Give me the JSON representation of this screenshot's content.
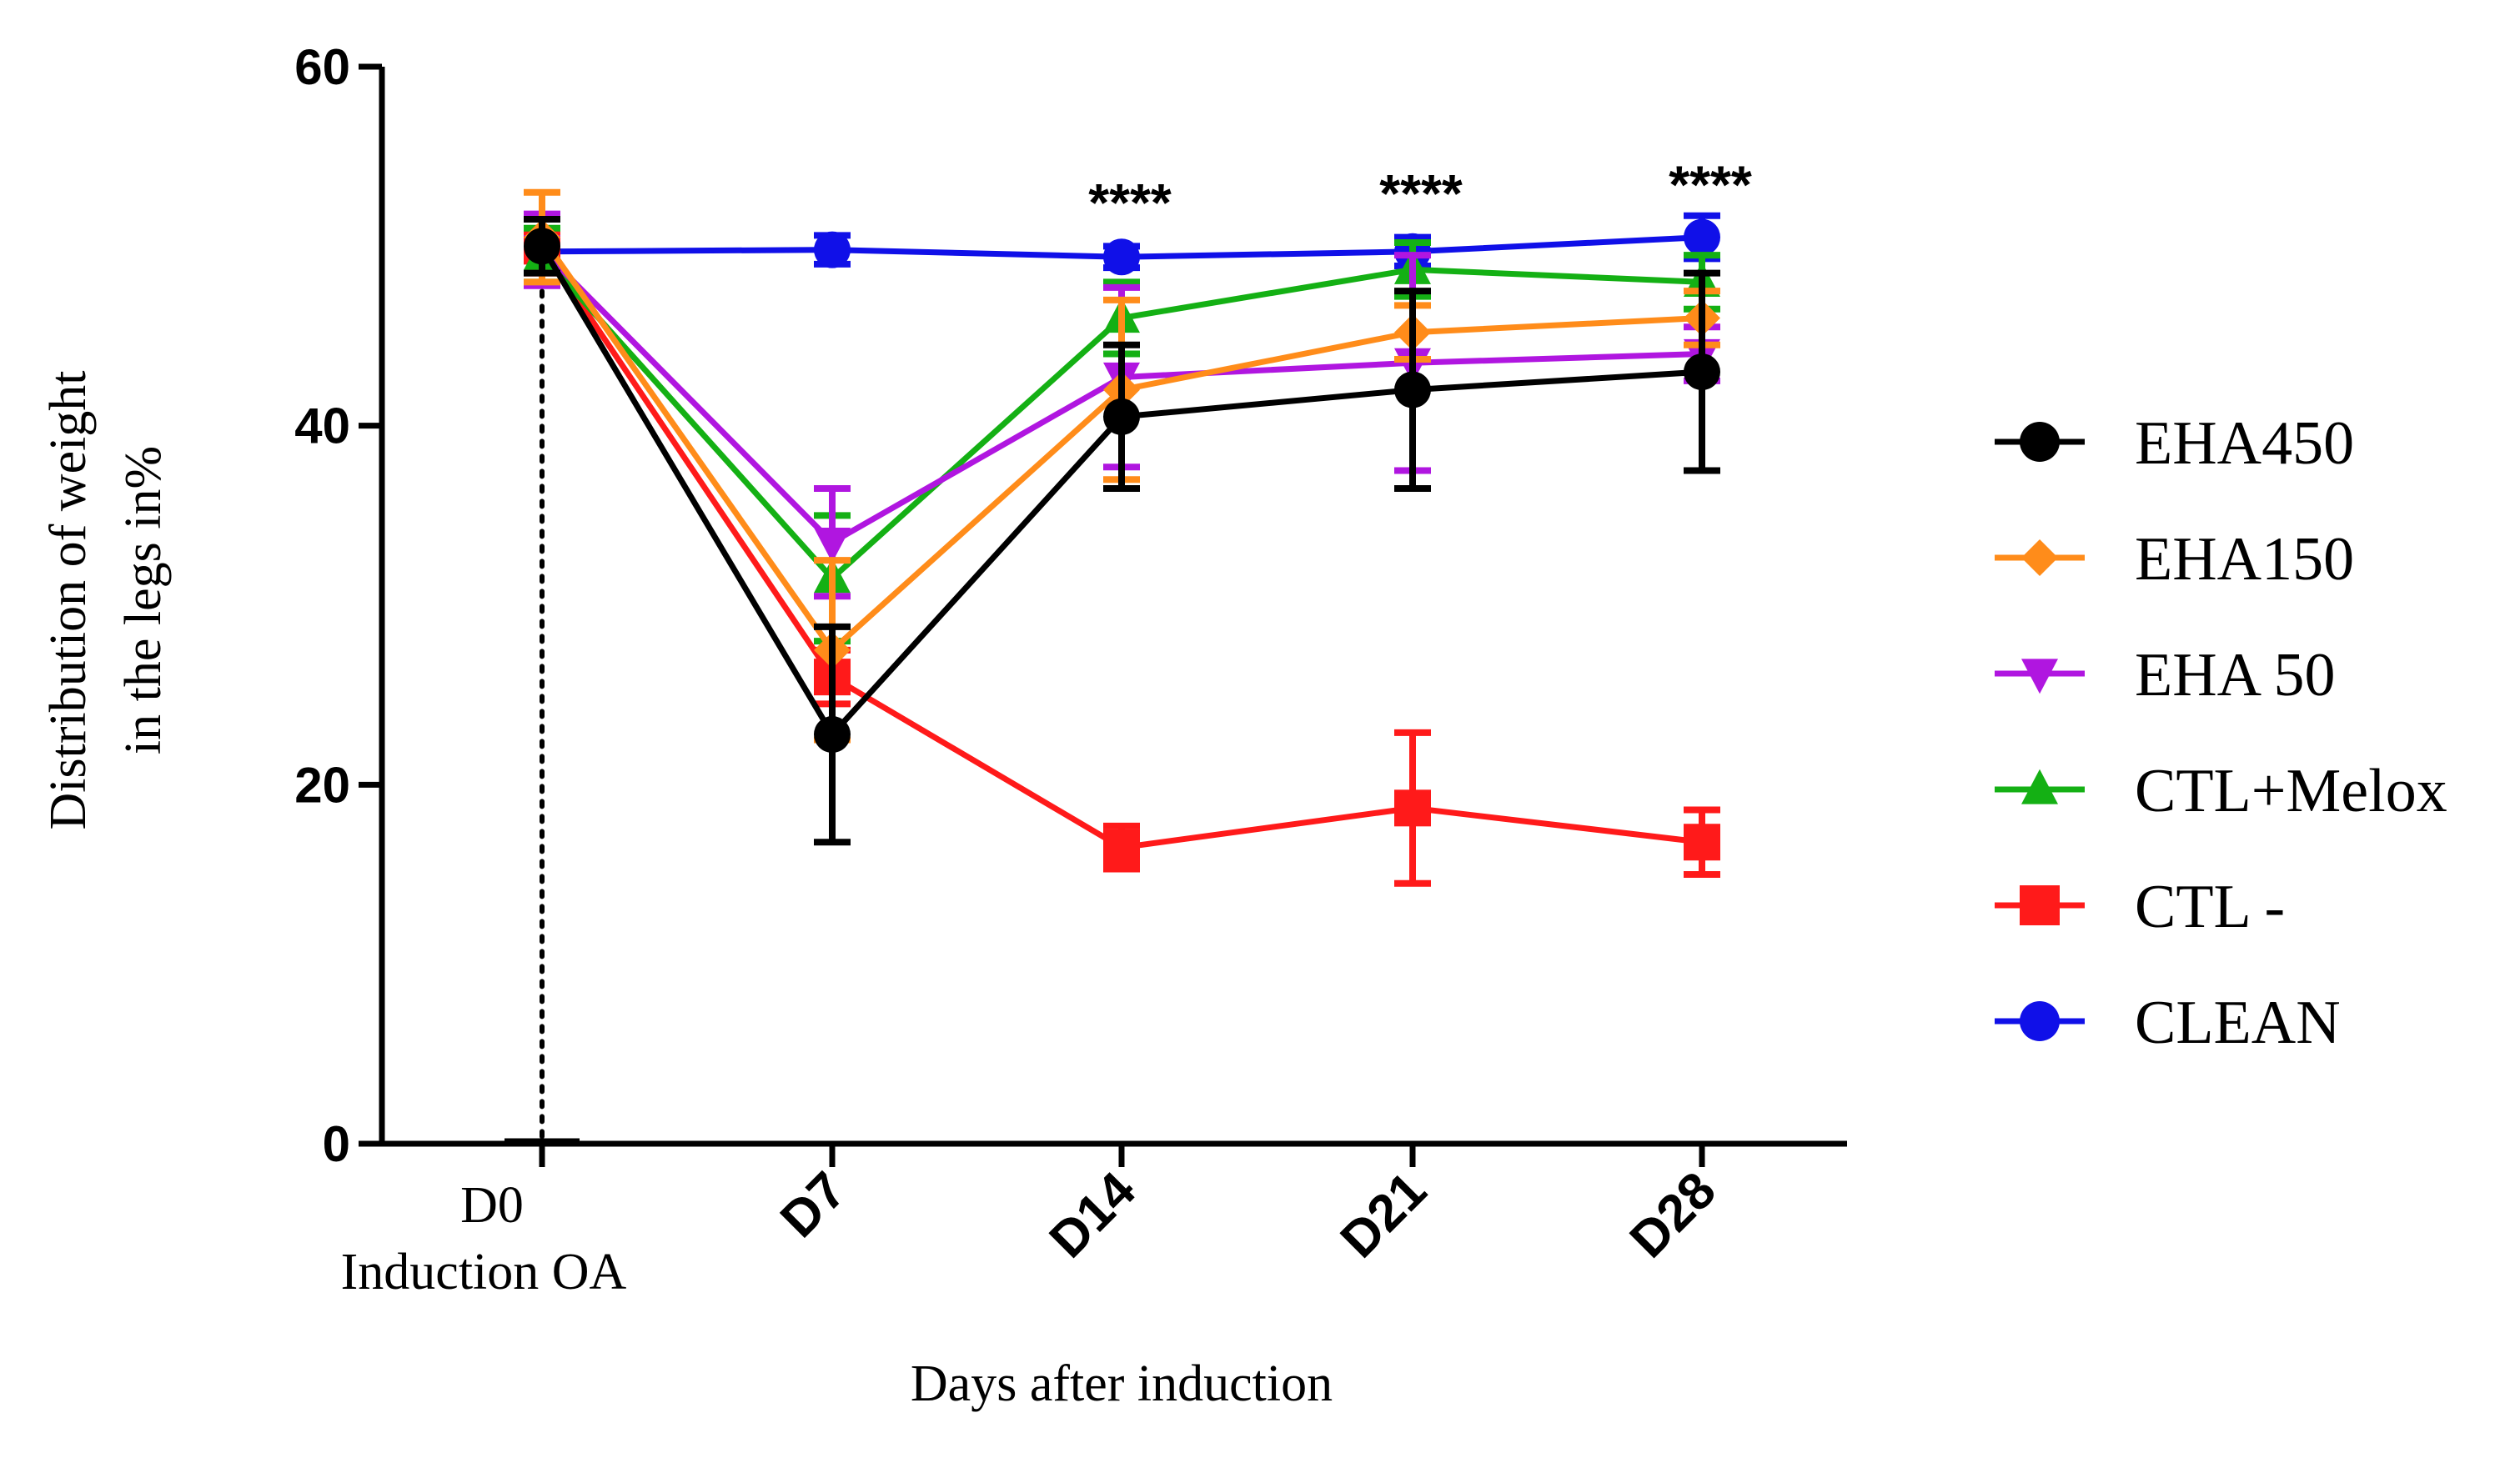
{
  "chart_data": {
    "type": "line",
    "xlabel": "Days after induction",
    "ylabel_lines": [
      "Distribution of weight",
      "in the legs in%"
    ],
    "x_categories": [
      {
        "lines": [
          "D0",
          "Induction OA"
        ],
        "style": "plain"
      },
      {
        "lines": [
          "D7"
        ],
        "style": "bold"
      },
      {
        "lines": [
          "D14"
        ],
        "style": "bold"
      },
      {
        "lines": [
          "D21"
        ],
        "style": "bold"
      },
      {
        "lines": [
          "D28"
        ],
        "style": "bold"
      }
    ],
    "ylim": [
      0,
      60
    ],
    "yticks": [
      0,
      20,
      40,
      60
    ],
    "grid": false,
    "legend_position": "right",
    "series": [
      {
        "name": "EHA450",
        "color": "#000000",
        "marker": "circle",
        "values": [
          50,
          22.8,
          40.5,
          42,
          43
        ],
        "errors": [
          1.5,
          6,
          4,
          5.5,
          5.5
        ]
      },
      {
        "name": "EHA150",
        "color": "#ff8c1a",
        "marker": "diamond",
        "values": [
          50.5,
          27.5,
          42,
          45.2,
          46
        ],
        "errors": [
          2.5,
          5,
          5,
          1.5,
          1.5
        ]
      },
      {
        "name": "EHA 50",
        "color": "#b016e0",
        "marker": "triangle-down",
        "values": [
          49.8,
          33.5,
          42.7,
          43.5,
          44
        ],
        "errors": [
          2,
          3,
          5,
          6,
          1.5
        ]
      },
      {
        "name": "CTL+Melox",
        "color": "#14b014",
        "marker": "triangle-up",
        "values": [
          49.5,
          31.5,
          46,
          48.7,
          48
        ],
        "errors": [
          1.5,
          3.5,
          2,
          1.5,
          1.5
        ]
      },
      {
        "name": "CTL -",
        "color": "#ff1a1a",
        "marker": "square",
        "values": [
          50,
          26,
          16.5,
          18.7,
          16.8
        ],
        "errors": [
          1.5,
          1.5,
          1.2,
          4.2,
          1.8
        ]
      },
      {
        "name": "CLEAN",
        "color": "#1010e8",
        "marker": "circle",
        "values": [
          49.7,
          49.8,
          49.4,
          49.7,
          50.5
        ],
        "errors": [
          0.5,
          0.8,
          0.6,
          0.8,
          1.2
        ]
      }
    ],
    "annotations": [
      {
        "x_index": 2,
        "y": 53.5,
        "text": "****"
      },
      {
        "x_index": 3,
        "y": 54.0,
        "text": "****"
      },
      {
        "x_index": 4,
        "y": 54.5,
        "text": "****"
      }
    ],
    "reference_line": {
      "x_index": 0,
      "style": "dotted",
      "from_y": 0,
      "to_y": 50
    }
  }
}
